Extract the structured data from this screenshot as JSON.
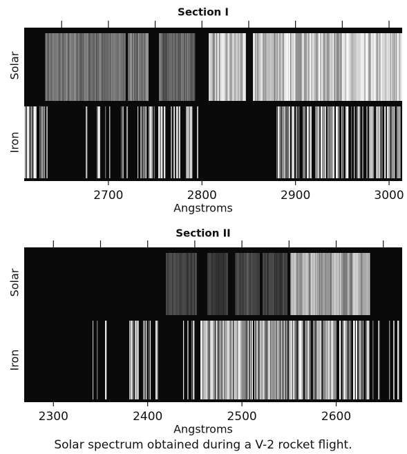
{
  "sections": [
    {
      "title": "Section I",
      "xlim": [
        2610,
        3014
      ],
      "ticks": [
        2700,
        2800,
        2900,
        3000
      ],
      "top_ticks": [
        2650,
        2700,
        2750,
        2800,
        2850,
        2900,
        2950,
        3000
      ],
      "x_label": "Angstroms",
      "rows": [
        "Solar",
        "Iron"
      ]
    },
    {
      "title": "Section II",
      "xlim": [
        2269,
        2670
      ],
      "ticks": [
        2300,
        2400,
        2500,
        2600
      ],
      "top_ticks": [
        2300,
        2350,
        2400,
        2450,
        2500,
        2550,
        2600,
        2650
      ],
      "x_label": "Angstroms",
      "rows": [
        "Solar",
        "Iron"
      ]
    }
  ],
  "caption": "Solar spectrum obtained during a V-2 rocket flight."
}
